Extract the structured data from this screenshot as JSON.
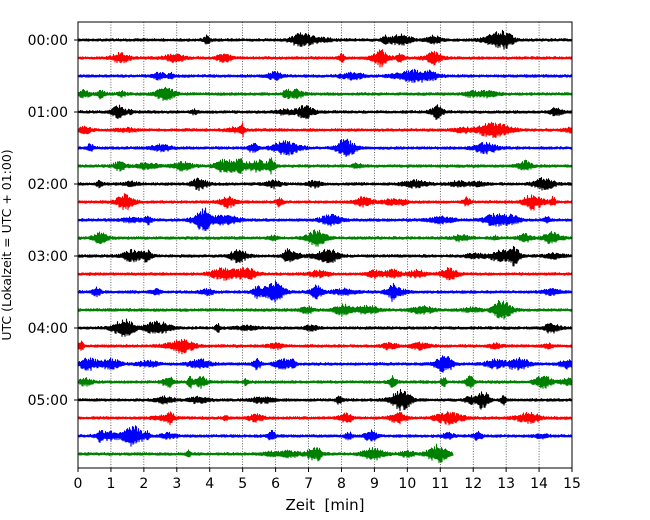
{
  "chart_data": {
    "type": "line",
    "title": "",
    "xlabel": "Zeit  [min]",
    "ylabel": "UTC (Lokalzeit = UTC + 01:00)",
    "xlim": [
      0,
      15
    ],
    "x_ticks": [
      "0",
      "1",
      "2",
      "3",
      "4",
      "5",
      "6",
      "7",
      "8",
      "9",
      "10",
      "11",
      "12",
      "13",
      "14",
      "15"
    ],
    "y_ticks": [
      "00:00",
      "01:00",
      "02:00",
      "03:00",
      "04:00",
      "05:00"
    ],
    "trace_interval_minutes": 15,
    "trace_count": 24,
    "colors_cycle": [
      "#000000",
      "#ff0000",
      "#0000ff",
      "#008000"
    ],
    "last_trace_end_minute": 11.4,
    "grid": "vertical dotted lines at each minute",
    "legend": "none"
  }
}
